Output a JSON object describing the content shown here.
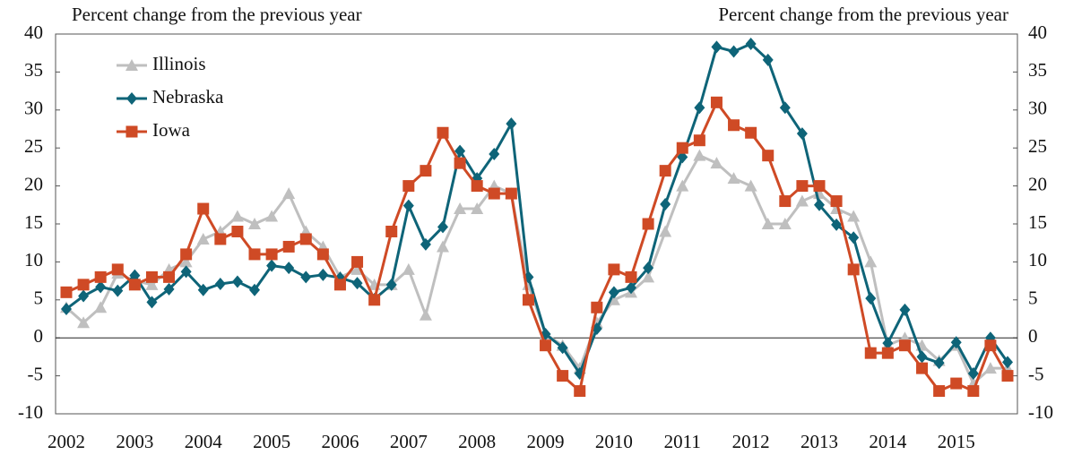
{
  "chart_data": {
    "type": "line",
    "ylabel": "Percent change from the previous year",
    "y2label": "Percent change from the previous year",
    "categories": [
      "2002",
      null,
      null,
      null,
      "2003",
      null,
      null,
      null,
      "2004",
      null,
      null,
      null,
      "2005",
      null,
      null,
      null,
      "2006",
      null,
      null,
      null,
      "2007",
      null,
      null,
      null,
      "2008",
      null,
      null,
      null,
      "2009",
      null,
      null,
      null,
      "2010",
      null,
      null,
      null,
      "2011",
      null,
      null,
      null,
      "2012",
      null,
      null,
      null,
      "2013",
      null,
      null,
      null,
      "2014",
      null,
      null,
      null,
      "2015",
      null,
      null,
      null
    ],
    "series": [
      {
        "name": "Illinois",
        "color": "#bfbfbf",
        "marker": "triangle",
        "values": [
          4,
          2,
          4,
          8.5,
          7.5,
          7,
          9,
          10,
          13,
          14,
          16,
          15,
          16,
          19,
          14,
          12,
          8,
          9,
          7,
          7,
          9,
          3,
          12,
          17,
          17,
          20,
          19,
          7,
          0.5,
          -1,
          -4,
          2,
          5,
          6,
          8,
          14,
          20,
          24,
          23,
          21,
          20,
          15,
          15,
          18,
          19,
          17,
          16,
          10,
          -1,
          0,
          -1,
          -3,
          -1,
          -6,
          -4,
          -4
        ]
      },
      {
        "name": "Nebraska",
        "color": "#0e6478",
        "marker": "diamond",
        "values": [
          3.8,
          5.5,
          6.7,
          6.2,
          8.2,
          4.7,
          6.4,
          8.7,
          6.3,
          7.1,
          7.4,
          6.3,
          9.5,
          9.2,
          8,
          8.3,
          7.9,
          7.2,
          5.1,
          7,
          17.4,
          12.3,
          14.6,
          24.6,
          21,
          24.2,
          28.2,
          8,
          0.5,
          -1.3,
          -4.7,
          1.2,
          6,
          6.6,
          9.2,
          17.6,
          23.8,
          30.3,
          38.3,
          37.7,
          38.7,
          36.6,
          30.3,
          26.9,
          17.5,
          14.9,
          13.2,
          5.2,
          -0.7,
          3.7,
          -2.5,
          -3.3,
          -0.6,
          -4.7,
          0,
          -3.2
        ]
      },
      {
        "name": "Iowa",
        "color": "#cf4a25",
        "marker": "square",
        "values": [
          6,
          7,
          8,
          9,
          7,
          8,
          8,
          11,
          17,
          13,
          14,
          11,
          11,
          12,
          13,
          11,
          7,
          10,
          5,
          14,
          20,
          22,
          27,
          23,
          20,
          19,
          19,
          5,
          -1,
          -5,
          -7,
          4,
          9,
          8,
          15,
          22,
          25,
          26,
          31,
          28,
          27,
          24,
          18,
          20,
          20,
          18,
          9,
          -2,
          -2,
          -1,
          -4,
          -7,
          -6,
          -7,
          -1,
          -5
        ]
      }
    ],
    "ylim": [
      -10,
      40
    ],
    "yticks": [
      -10,
      -5,
      0,
      5,
      10,
      15,
      20,
      25,
      30,
      35,
      40
    ],
    "y2lim": [
      -10,
      40
    ],
    "y2ticks": [
      -10,
      -5,
      0,
      5,
      10,
      15,
      20,
      25,
      30,
      35,
      40
    ],
    "legend": "upper left",
    "zero_line": true
  }
}
